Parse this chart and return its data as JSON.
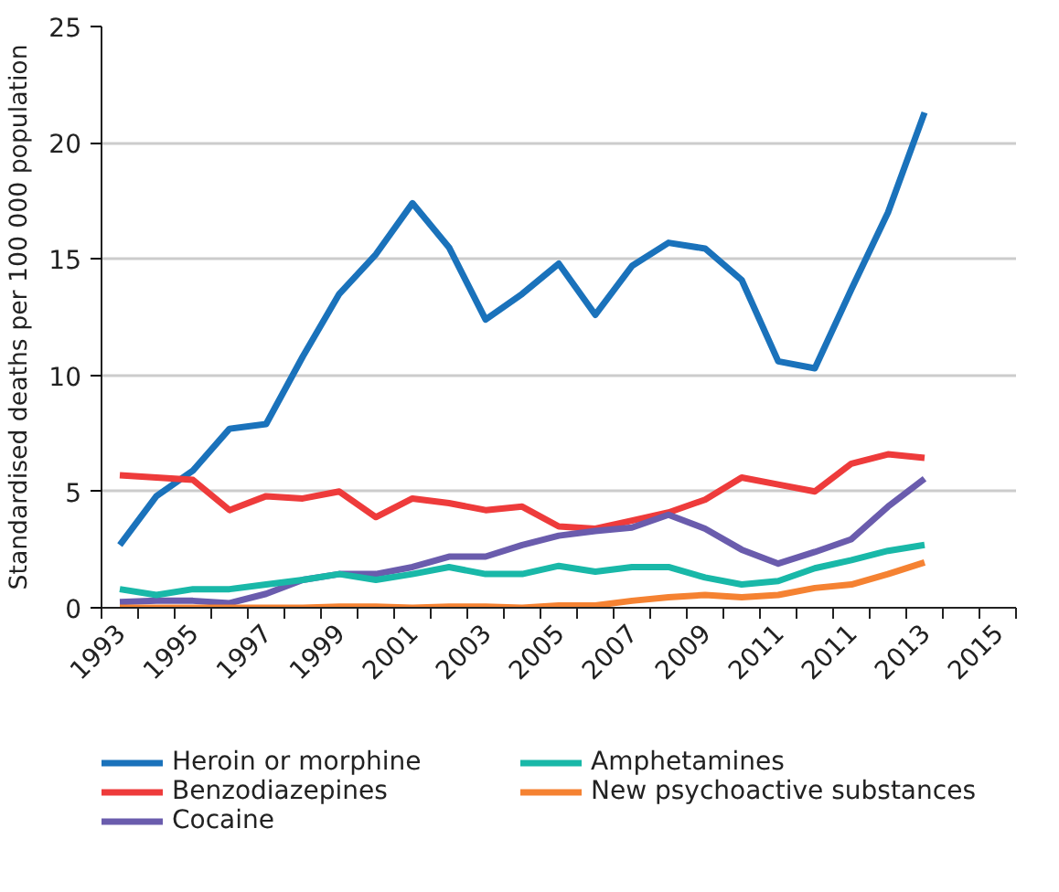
{
  "chart_data": {
    "type": "line",
    "ylabel": "Standardised deaths per 100 000 population",
    "categories": [
      "1993",
      null,
      "1995",
      null,
      "1997",
      null,
      "1999",
      null,
      "2001",
      null,
      "2003",
      null,
      "2005",
      null,
      "2007",
      null,
      "2009",
      null,
      "2011",
      null,
      "2011",
      null,
      "2013",
      null,
      "2015"
    ],
    "series": [
      {
        "name": "Heroin or morphine",
        "color": "#1a72bb",
        "values": [
          2.7,
          4.8,
          5.9,
          7.7,
          7.9,
          10.8,
          13.5,
          15.2,
          17.4,
          15.5,
          12.4,
          13.5,
          14.8,
          12.6,
          14.7,
          15.7,
          15.45,
          14.1,
          10.6,
          10.3,
          13.7,
          17.0,
          21.3,
          null,
          null
        ]
      },
      {
        "name": "Benzodiazepines",
        "color": "#ee3b3b",
        "values": [
          5.7,
          5.6,
          5.5,
          4.2,
          4.8,
          4.7,
          5.0,
          3.9,
          4.7,
          4.5,
          4.2,
          4.35,
          3.5,
          3.4,
          3.75,
          4.1,
          4.65,
          5.6,
          5.3,
          5.0,
          6.2,
          6.6,
          6.45,
          null,
          null
        ]
      },
      {
        "name": "Cocaine",
        "color": "#6a5cad",
        "values": [
          0.25,
          0.3,
          0.3,
          0.2,
          0.6,
          1.2,
          1.45,
          1.45,
          1.75,
          2.2,
          2.2,
          2.7,
          3.1,
          3.3,
          3.45,
          4.0,
          3.4,
          2.5,
          1.9,
          2.4,
          2.95,
          4.35,
          5.55,
          null,
          null
        ]
      },
      {
        "name": "Amphetamines",
        "color": "#19b8a8",
        "values": [
          0.8,
          0.55,
          0.8,
          0.8,
          1.0,
          1.2,
          1.45,
          1.2,
          1.45,
          1.75,
          1.45,
          1.45,
          1.8,
          1.55,
          1.75,
          1.75,
          1.3,
          1.0,
          1.15,
          1.7,
          2.05,
          2.45,
          2.7,
          null,
          null
        ]
      },
      {
        "name": "New psychoactive substances",
        "color": "#f58232",
        "values": [
          0,
          0,
          0,
          0,
          0,
          0,
          0.05,
          0.05,
          0,
          0.05,
          0.05,
          0,
          0.1,
          0.1,
          0.3,
          0.45,
          0.55,
          0.45,
          0.55,
          0.85,
          1.0,
          1.45,
          1.95,
          null,
          null
        ]
      }
    ],
    "ylim": [
      0,
      25
    ],
    "yticks": [
      0,
      5,
      10,
      15,
      20,
      25
    ],
    "grid": "y",
    "legend": "bottom",
    "marker": "none",
    "line_style": "solid"
  }
}
